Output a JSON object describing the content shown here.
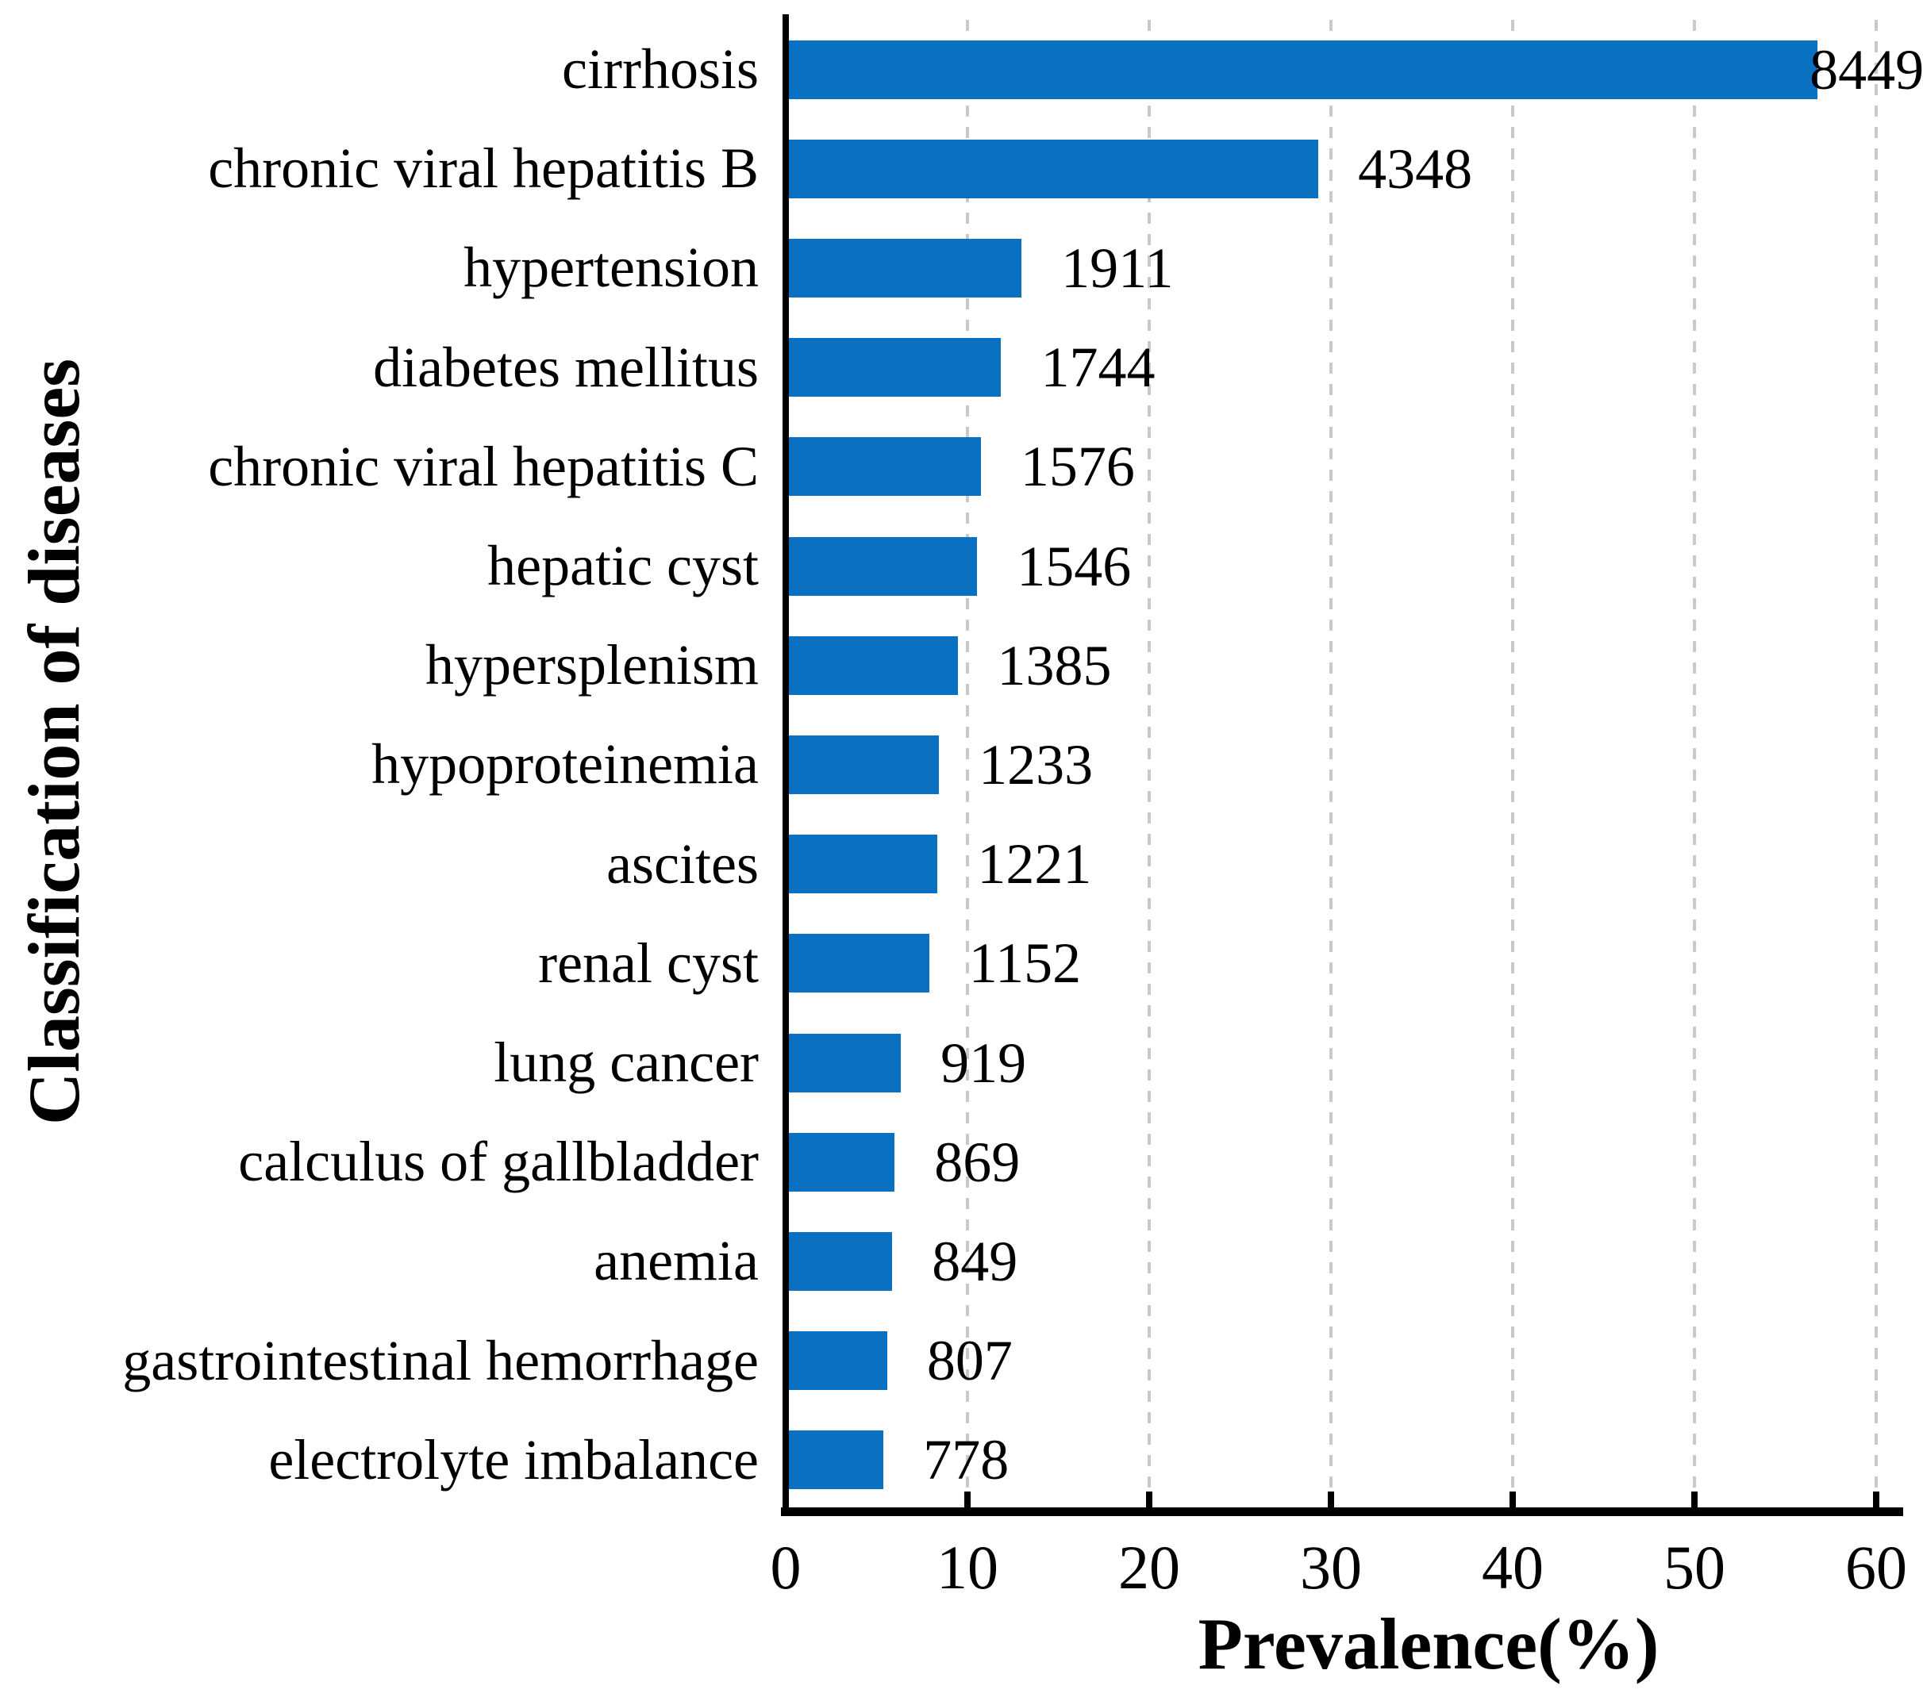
{
  "chart_data": {
    "type": "bar",
    "orientation": "horizontal",
    "title": "",
    "xlabel": "Prevalence(%)",
    "ylabel": "Classification of diseases",
    "xlim": [
      0,
      60
    ],
    "xticks": [
      0,
      10,
      20,
      30,
      40,
      50,
      60
    ],
    "grid": "vertical-dashed",
    "legend": "none",
    "bar_color": "#0a70c1",
    "gridline_color": "#c9c9c9",
    "axis_color": "#000000",
    "categories": [
      "cirrhosis",
      "chronic viral hepatitis B",
      "hypertension",
      "diabetes mellitus",
      "chronic viral hepatitis C",
      "hepatic cyst",
      "hypersplenism",
      "hypoproteinemia",
      "ascites",
      "renal cyst",
      "lung cancer",
      "calculus of gallbladder",
      "anemia",
      "gastrointestinal hemorrhage",
      "electrolyte imbalance"
    ],
    "counts": [
      8449,
      4348,
      1911,
      1744,
      1576,
      1546,
      1385,
      1233,
      1221,
      1152,
      919,
      869,
      849,
      807,
      778
    ],
    "percent": [
      56.6,
      29.13,
      12.8,
      11.68,
      10.56,
      10.36,
      9.28,
      8.26,
      8.18,
      7.72,
      6.16,
      5.82,
      5.69,
      5.41,
      5.21
    ]
  }
}
